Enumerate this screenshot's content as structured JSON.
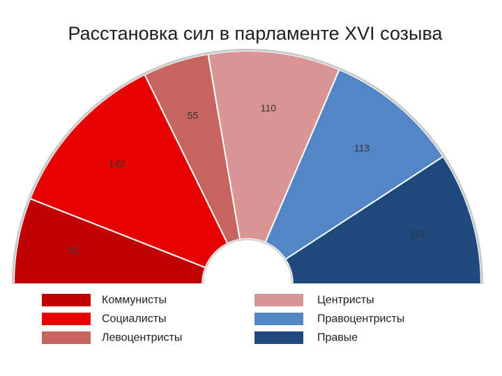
{
  "chart_data": {
    "type": "pie",
    "title": "Расстановка сил в парламенте XVI созыва",
    "categories": [
      "Коммунисты",
      "Социалисты",
      "Левоцентристы",
      "Центристы",
      "Правоцентристы",
      "Правые"
    ],
    "values": [
      72,
      142,
      55,
      110,
      113,
      111
    ],
    "colors": [
      "#C00000",
      "#E60000",
      "#C8645F",
      "#D99594",
      "#5286C7",
      "#1F497D"
    ],
    "legend_position": "bottom"
  }
}
